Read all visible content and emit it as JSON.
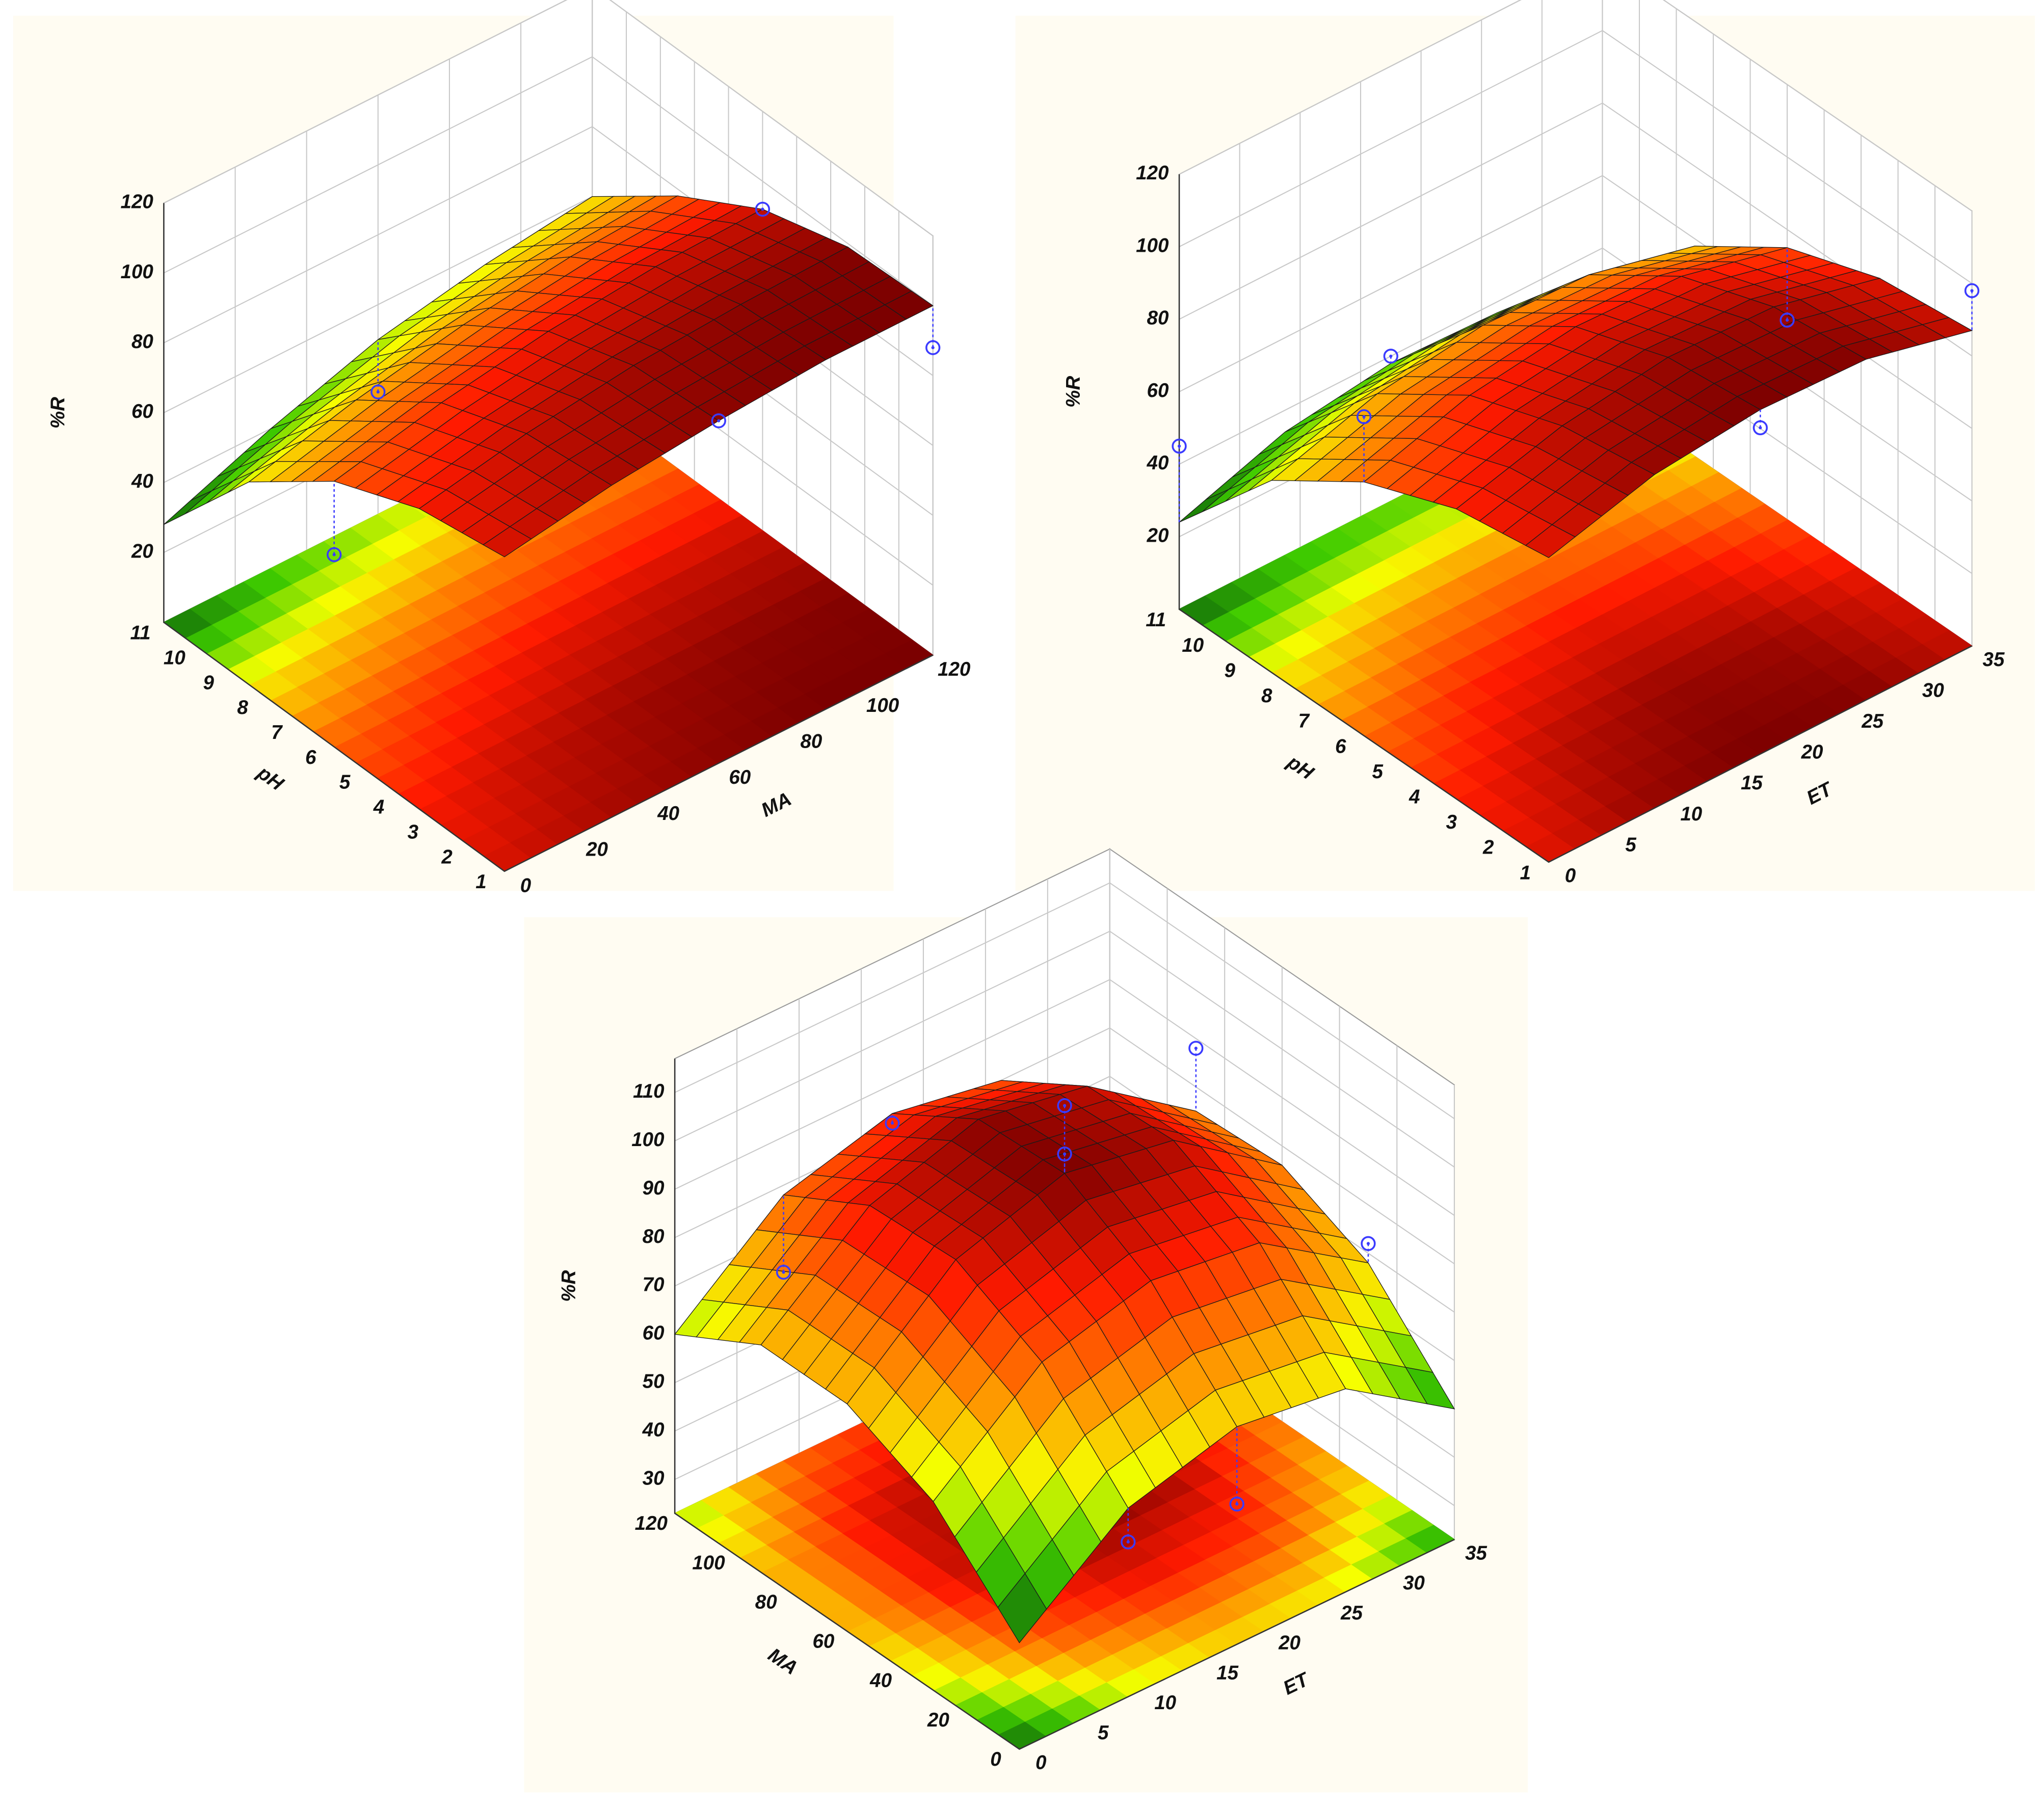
{
  "chart_data": [
    {
      "type": "surface",
      "x_label": "pH",
      "y_label": "MA",
      "z_label": "%R",
      "x": [
        1,
        3.5,
        6,
        8.5,
        11
      ],
      "y": [
        0,
        30,
        60,
        90,
        120
      ],
      "z": [
        [
          90,
          95,
          98,
          100,
          100
        ],
        [
          86,
          92,
          96,
          98,
          99
        ],
        [
          76,
          83,
          88,
          91,
          92
        ],
        [
          58,
          66,
          72,
          76,
          78
        ],
        [
          28,
          40,
          50,
          56,
          60
        ]
      ],
      "xlim": [
        1,
        11
      ],
      "ylim": [
        0,
        120
      ],
      "zlim": [
        0,
        120
      ],
      "xticks": [
        1,
        2,
        3,
        4,
        5,
        6,
        7,
        8,
        9,
        10,
        11
      ],
      "yticks": [
        0,
        20,
        40,
        60,
        80,
        100,
        120
      ],
      "zticks": [
        20,
        40,
        60,
        80,
        100,
        120
      ],
      "points": {
        "x": [
          11,
          6,
          6,
          1,
          1
        ],
        "y": [
          60,
          0,
          120,
          60,
          120
        ],
        "z": [
          35,
          55,
          92,
          98,
          88
        ]
      },
      "colors": [
        "#0b5e0b",
        "#3fcc00",
        "#f6ff00",
        "#ff8a00",
        "#ff1a00",
        "#7a0000"
      ],
      "point_color": "#3b3bff"
    },
    {
      "type": "surface",
      "x_label": "pH",
      "y_label": "ET",
      "z_label": "%R",
      "x": [
        1,
        3.5,
        6,
        8.5,
        11
      ],
      "y": [
        0,
        8.75,
        17.5,
        26.25,
        35
      ],
      "z": [
        [
          84,
          92,
          95,
          94,
          87
        ],
        [
          80,
          88,
          92,
          91,
          84
        ],
        [
          70,
          79,
          83,
          82,
          75
        ],
        [
          53,
          62,
          66,
          65,
          58
        ],
        [
          24,
          34,
          38,
          37,
          30
        ]
      ],
      "xlim": [
        1,
        11
      ],
      "ylim": [
        0,
        35
      ],
      "zlim": [
        0,
        120
      ],
      "xticks": [
        1,
        2,
        3,
        4,
        5,
        6,
        7,
        8,
        9,
        10,
        11
      ],
      "yticks": [
        0,
        5,
        10,
        15,
        20,
        25,
        30,
        35
      ],
      "zticks": [
        20,
        40,
        60,
        80,
        100,
        120
      ],
      "points": {
        "x": [
          11,
          11,
          6,
          6,
          1,
          1
        ],
        "y": [
          0,
          17.5,
          0,
          35,
          17.5,
          35
        ],
        "z": [
          45,
          40,
          88,
          55,
          90,
          98
        ]
      },
      "colors": [
        "#0b5e0b",
        "#3fcc00",
        "#f6ff00",
        "#ff8a00",
        "#ff1a00",
        "#7a0000"
      ],
      "point_color": "#3b3bff"
    },
    {
      "type": "surface",
      "x_label": "MA",
      "y_label": "ET",
      "z_label": "%R",
      "x": [
        0,
        30,
        60,
        90,
        120
      ],
      "y": [
        0,
        8.75,
        17.5,
        26.25,
        35
      ],
      "z": [
        [
          45,
          62,
          68,
          65,
          50
        ],
        [
          62,
          80,
          86,
          83,
          68
        ],
        [
          70,
          89,
          96,
          92,
          76
        ],
        [
          70,
          88,
          95,
          91,
          75
        ],
        [
          60,
          78,
          84,
          80,
          64
        ]
      ],
      "xlim": [
        0,
        120
      ],
      "ylim": [
        0,
        35
      ],
      "zlim": [
        23,
        117
      ],
      "xticks": [
        0,
        20,
        40,
        60,
        80,
        100,
        120
      ],
      "yticks": [
        0,
        5,
        10,
        15,
        20,
        25,
        30,
        35
      ],
      "zticks": [
        30,
        40,
        50,
        60,
        70,
        80,
        90,
        100,
        110
      ],
      "points": {
        "x": [
          60,
          60,
          120,
          0,
          0,
          120,
          30,
          90
        ],
        "y": [
          17.5,
          17.5,
          17.5,
          17.5,
          8.75,
          8.75,
          35,
          35
        ],
        "z": [
          110,
          100,
          82,
          52,
          55,
          62,
          72,
          88
        ]
      },
      "colors": [
        "#0b5e0b",
        "#3fcc00",
        "#f6ff00",
        "#ff8a00",
        "#ff1a00",
        "#7a0000"
      ],
      "point_color": "#3b3bff"
    }
  ]
}
